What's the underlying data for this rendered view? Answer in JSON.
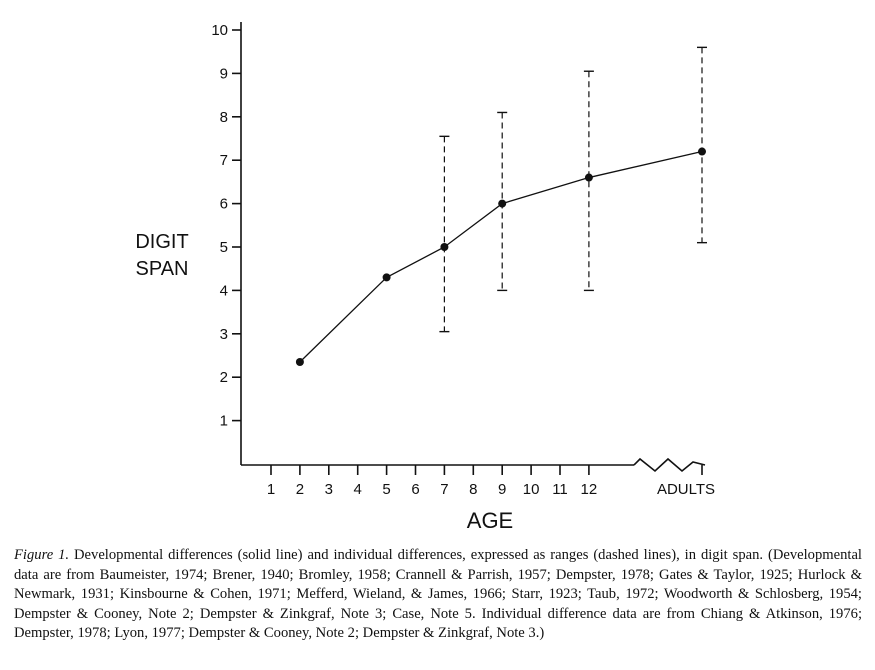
{
  "chart_data": {
    "type": "line",
    "xlabel": "AGE",
    "ylabel": [
      "DIGIT",
      "SPAN"
    ],
    "ylim": [
      0,
      10
    ],
    "y_ticks": [
      "1",
      "2",
      "3",
      "4",
      "5",
      "6",
      "7",
      "8",
      "9",
      "10"
    ],
    "x_ticks": [
      "1",
      "2",
      "3",
      "4",
      "5",
      "6",
      "7",
      "8",
      "9",
      "10",
      "11",
      "12",
      "ADULTS"
    ],
    "axis_break": "between 12 and ADULTS",
    "series": [
      {
        "style": "solid",
        "points": [
          {
            "x": "2",
            "y": 2.35
          },
          {
            "x": "5",
            "y": 4.3
          },
          {
            "x": "7",
            "y": 5.0
          },
          {
            "x": "9",
            "y": 6.0
          },
          {
            "x": "12",
            "y": 6.6
          },
          {
            "x": "ADULTS",
            "y": 7.2
          }
        ]
      },
      {
        "style": "dashed",
        "ranges": [
          {
            "x": "7",
            "low": 3.05,
            "high": 7.55
          },
          {
            "x": "9",
            "low": 4.0,
            "high": 8.1
          },
          {
            "x": "12",
            "low": 4.0,
            "high": 9.05
          },
          {
            "x": "ADULTS",
            "low": 5.1,
            "high": 9.6
          }
        ]
      }
    ],
    "grid": false
  },
  "caption": {
    "label": "Figure 1.",
    "text": " Developmental differences (solid line) and individual differences, expressed as ranges (dashed lines), in digit span. (Developmental data are from Baumeister, 1974; Brener, 1940; Bromley, 1958; Crannell & Parrish, 1957; Dempster, 1978; Gates & Taylor, 1925; Hurlock & Newmark, 1931; Kinsbourne & Cohen, 1971; Mefferd, Wieland, & James, 1966; Starr, 1923; Taub, 1972; Woodworth & Schlosberg, 1954; Dempster & Cooney, Note 2; Dempster & Zinkgraf, Note 3; Case, Note 5. Individual difference data are from Chiang & Atkinson, 1976; Dempster, 1978; Lyon, 1977; Dempster & Cooney, Note 2; Dempster & Zinkgraf, Note 3.)"
  }
}
